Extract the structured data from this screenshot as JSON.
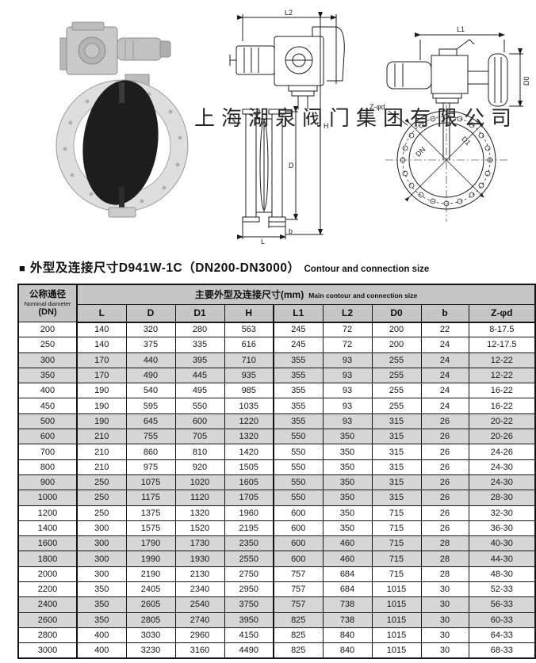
{
  "watermark": "上海湖泉阀门集团有限公司",
  "section": {
    "bullet": "■",
    "title_cn": "外型及连接尺寸D941W-1C（DN200-DN3000）",
    "title_en": "Contour and connection size"
  },
  "figures": {
    "side_view": {
      "dim_l2": "L2",
      "dim_d": "D",
      "dim_h": "H",
      "dim_l": "L",
      "dim_b": "b"
    },
    "front_view": {
      "dim_l1": "L1",
      "dim_d0": "D0",
      "bolt_label": "Z-φd",
      "dim_dn": "DN",
      "dim_d1": "D1"
    }
  },
  "table": {
    "col1_header": {
      "cn": "公称通径",
      "en": "Nominal diameter",
      "sub": "(DN)"
    },
    "main_header": {
      "cn": "主要外型及连接尺寸(mm)",
      "en": "Main contour and connection size"
    },
    "columns": [
      "L",
      "D",
      "D1",
      "H",
      "L1",
      "L2",
      "D0",
      "b",
      "Z-φd"
    ],
    "rows": [
      {
        "dn": "200",
        "values": [
          "140",
          "320",
          "280",
          "563",
          "245",
          "72",
          "200",
          "22",
          "8-17.5"
        ]
      },
      {
        "dn": "250",
        "values": [
          "140",
          "375",
          "335",
          "616",
          "245",
          "72",
          "200",
          "24",
          "12-17.5"
        ]
      },
      {
        "dn": "300",
        "values": [
          "170",
          "440",
          "395",
          "710",
          "355",
          "93",
          "255",
          "24",
          "12-22"
        ]
      },
      {
        "dn": "350",
        "values": [
          "170",
          "490",
          "445",
          "935",
          "355",
          "93",
          "255",
          "24",
          "12-22"
        ]
      },
      {
        "dn": "400",
        "values": [
          "190",
          "540",
          "495",
          "985",
          "355",
          "93",
          "255",
          "24",
          "16-22"
        ]
      },
      {
        "dn": "450",
        "values": [
          "190",
          "595",
          "550",
          "1035",
          "355",
          "93",
          "255",
          "24",
          "16-22"
        ]
      },
      {
        "dn": "500",
        "values": [
          "190",
          "645",
          "600",
          "1220",
          "355",
          "93",
          "315",
          "26",
          "20-22"
        ]
      },
      {
        "dn": "600",
        "values": [
          "210",
          "755",
          "705",
          "1320",
          "550",
          "350",
          "315",
          "26",
          "20-26"
        ]
      },
      {
        "dn": "700",
        "values": [
          "210",
          "860",
          "810",
          "1420",
          "550",
          "350",
          "315",
          "26",
          "24-26"
        ]
      },
      {
        "dn": "800",
        "values": [
          "210",
          "975",
          "920",
          "1505",
          "550",
          "350",
          "315",
          "26",
          "24-30"
        ]
      },
      {
        "dn": "900",
        "values": [
          "250",
          "1075",
          "1020",
          "1605",
          "550",
          "350",
          "315",
          "26",
          "24-30"
        ]
      },
      {
        "dn": "1000",
        "values": [
          "250",
          "1175",
          "1120",
          "1705",
          "550",
          "350",
          "315",
          "26",
          "28-30"
        ]
      },
      {
        "dn": "1200",
        "values": [
          "250",
          "1375",
          "1320",
          "1960",
          "600",
          "350",
          "715",
          "26",
          "32-30"
        ]
      },
      {
        "dn": "1400",
        "values": [
          "300",
          "1575",
          "1520",
          "2195",
          "600",
          "350",
          "715",
          "26",
          "36-30"
        ]
      },
      {
        "dn": "1600",
        "values": [
          "300",
          "1790",
          "1730",
          "2350",
          "600",
          "460",
          "715",
          "28",
          "40-30"
        ]
      },
      {
        "dn": "1800",
        "values": [
          "300",
          "1990",
          "1930",
          "2550",
          "600",
          "460",
          "715",
          "28",
          "44-30"
        ]
      },
      {
        "dn": "2000",
        "values": [
          "300",
          "2190",
          "2130",
          "2750",
          "757",
          "684",
          "715",
          "28",
          "48-30"
        ]
      },
      {
        "dn": "2200",
        "values": [
          "350",
          "2405",
          "2340",
          "2950",
          "757",
          "684",
          "1015",
          "30",
          "52-33"
        ]
      },
      {
        "dn": "2400",
        "values": [
          "350",
          "2605",
          "2540",
          "3750",
          "757",
          "738",
          "1015",
          "30",
          "56-33"
        ]
      },
      {
        "dn": "2600",
        "values": [
          "350",
          "2805",
          "2740",
          "3950",
          "825",
          "738",
          "1015",
          "30",
          "60-33"
        ]
      },
      {
        "dn": "2800",
        "values": [
          "400",
          "3030",
          "2960",
          "4150",
          "825",
          "840",
          "1015",
          "30",
          "64-33"
        ]
      },
      {
        "dn": "3000",
        "values": [
          "400",
          "3230",
          "3160",
          "4490",
          "825",
          "840",
          "1015",
          "30",
          "68-33"
        ]
      }
    ]
  }
}
